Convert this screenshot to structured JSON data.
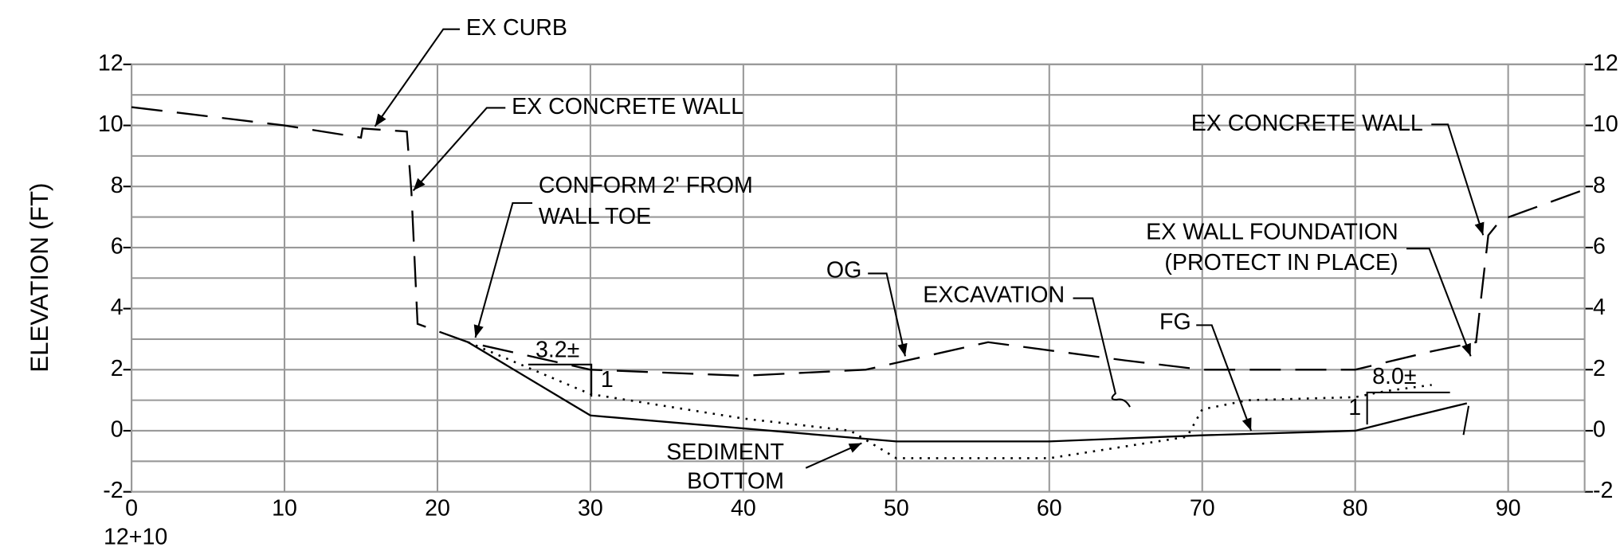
{
  "chart_data": {
    "type": "line",
    "y_label": "ELEVATION (FT)",
    "station_label": "12+10",
    "xlim": [
      0,
      95
    ],
    "xticks": [
      0,
      10,
      20,
      30,
      40,
      50,
      60,
      70,
      80,
      90
    ],
    "ylim": [
      -2,
      12
    ],
    "yticks": [
      -2,
      0,
      2,
      4,
      6,
      8,
      10,
      12
    ],
    "y_minor_grid": [
      -1,
      1,
      3,
      5,
      7,
      9,
      11
    ],
    "y2lim": [
      -2,
      12
    ],
    "y2ticks": [
      -2,
      0,
      2,
      4,
      6,
      8,
      10,
      12
    ],
    "grid": true,
    "grid_color": "#999999",
    "series": [
      {
        "name": "OG",
        "color": "#000000",
        "style": "dashed",
        "x": [
          0,
          10,
          15,
          15.1,
          18,
          18.3,
          18.7,
          22,
          30,
          40,
          48,
          56,
          65,
          70,
          80,
          85,
          87.9,
          88.7,
          89.5,
          95
        ],
        "values": [
          10.6,
          10.0,
          9.6,
          9.9,
          9.8,
          7.8,
          3.5,
          2.9,
          2.0,
          1.8,
          2.0,
          2.9,
          2.3,
          2.0,
          2.0,
          2.6,
          2.9,
          6.4,
          6.9,
          7.9
        ]
      },
      {
        "name": "FG",
        "color": "#000000",
        "style": "solid",
        "x": [
          22,
          30,
          50,
          60,
          70,
          80,
          84,
          87.3
        ],
        "values": [
          2.9,
          0.5,
          -0.35,
          -0.35,
          -0.15,
          0.0,
          0.5,
          0.9
        ]
      },
      {
        "name": "EXCAVATION",
        "color": "#000000",
        "style": "dotted",
        "x": [
          22,
          30,
          40,
          47,
          50,
          60,
          69,
          70,
          73,
          80,
          82,
          85
        ],
        "values": [
          2.9,
          1.2,
          0.4,
          0.0,
          -0.9,
          -0.9,
          -0.2,
          0.7,
          1.0,
          1.1,
          1.3,
          1.5
        ]
      }
    ],
    "annotations": [
      "EX CURB",
      "EX CONCRETE WALL",
      [
        "CONFORM 2' FROM",
        "WALL TOE"
      ],
      [
        "EX WALL FOUNDATION",
        "(PROTECT IN PLACE)"
      ],
      "EX CONCRETE WALL",
      [
        "SEDIMENT",
        "BOTTOM"
      ],
      "3.2±",
      "1",
      "8.0±",
      "1"
    ]
  }
}
